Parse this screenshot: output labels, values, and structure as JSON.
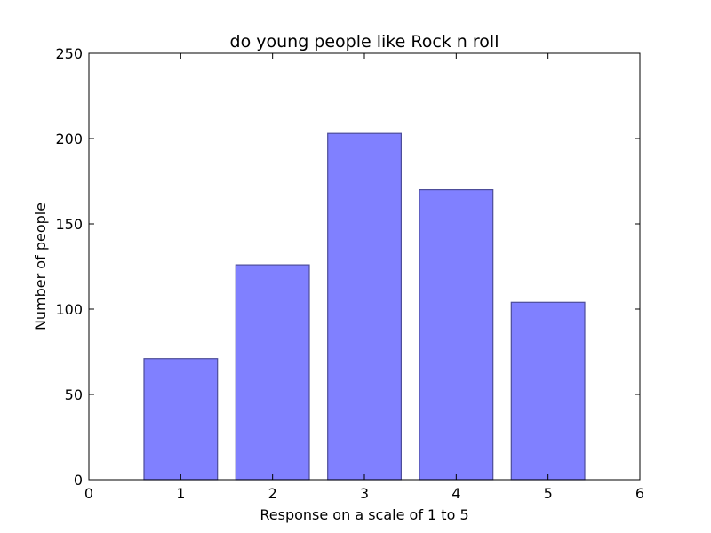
{
  "chart_data": {
    "type": "bar",
    "title": "do young people like Rock n roll",
    "xlabel": "Response on a scale of 1 to 5",
    "ylabel": "Number of people",
    "x": [
      1,
      2,
      3,
      4,
      5
    ],
    "values": [
      71,
      126,
      203,
      170,
      104
    ],
    "bar_width": 0.8,
    "xlim": [
      0,
      6
    ],
    "ylim": [
      0,
      250
    ],
    "xticks": [
      "0",
      "1",
      "2",
      "3",
      "4",
      "5",
      "6"
    ],
    "yticks": [
      "0",
      "50",
      "100",
      "150",
      "200",
      "250"
    ],
    "grid": false,
    "bar_color": "#8080ff",
    "bar_edge_color": "#4d4d99"
  }
}
